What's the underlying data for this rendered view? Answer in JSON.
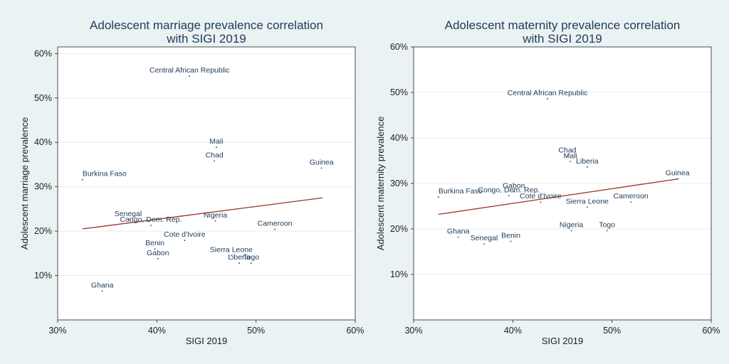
{
  "colors": {
    "background": "#eaf2f3",
    "plot_bg": "#ffffff",
    "marker": "#1f3b57",
    "fit_line": "#a0312f",
    "title": "#1f3b57"
  },
  "chart_data": [
    {
      "type": "scatter",
      "title_lines": [
        "Adolescent marriage prevalence correlation",
        "with SIGI 2019"
      ],
      "xlabel": "SIGI 2019",
      "ylabel": "Adolescent marriage prevalence",
      "xlim": [
        30,
        60
      ],
      "ylim": [
        0,
        61.5
      ],
      "xticks": [
        30,
        40,
        50,
        60
      ],
      "xtick_labels": [
        "30%",
        "40%",
        "50%",
        "60%"
      ],
      "yticks": [
        10,
        20,
        30,
        40,
        50,
        60
      ],
      "ytick_labels": [
        "10%",
        "20%",
        "30%",
        "40%",
        "50%",
        "60%"
      ],
      "grid": true,
      "fit_line": {
        "x": [
          32.5,
          56.7
        ],
        "y": [
          20.5,
          27.5
        ]
      },
      "points": [
        {
          "label": "Central African Republic",
          "x": 43.3,
          "y": 54.9
        },
        {
          "label": "Mali",
          "x": 46.0,
          "y": 38.9
        },
        {
          "label": "Chad",
          "x": 45.8,
          "y": 35.8
        },
        {
          "label": "Guinea",
          "x": 56.6,
          "y": 34.2
        },
        {
          "label": "Burkina Faso",
          "x": 32.5,
          "y": 31.6
        },
        {
          "label": "Senegal",
          "x": 37.1,
          "y": 22.6
        },
        {
          "label": "Congo, Dem. Rep.",
          "x": 39.4,
          "y": 21.3
        },
        {
          "label": "Nigeria",
          "x": 45.9,
          "y": 22.3
        },
        {
          "label": "Cameroon",
          "x": 51.9,
          "y": 20.4
        },
        {
          "label": "Cote d'Ivoire",
          "x": 42.8,
          "y": 17.9
        },
        {
          "label": "Benin",
          "x": 39.8,
          "y": 16.0
        },
        {
          "label": "Sierra Leone",
          "x": 47.5,
          "y": 14.5
        },
        {
          "label": "Gabon",
          "x": 40.1,
          "y": 13.8
        },
        {
          "label": "Liberia",
          "x": 48.3,
          "y": 12.8
        },
        {
          "label": "Togo",
          "x": 49.5,
          "y": 12.8
        },
        {
          "label": "Ghana",
          "x": 34.5,
          "y": 6.5
        }
      ]
    },
    {
      "type": "scatter",
      "title_lines": [
        "Adolescent maternity prevalence correlation",
        "with SIGI 2019"
      ],
      "xlabel": "SIGI 2019",
      "ylabel": "Adolescent maternity prevalence",
      "xlim": [
        30,
        60
      ],
      "ylim": [
        0,
        60
      ],
      "xticks": [
        30,
        40,
        50,
        60
      ],
      "xtick_labels": [
        "30%",
        "40%",
        "50%",
        "60%"
      ],
      "yticks": [
        10,
        20,
        30,
        40,
        50,
        60
      ],
      "ytick_labels": [
        "10%",
        "20%",
        "30%",
        "40%",
        "50%",
        "60%"
      ],
      "grid": true,
      "fit_line": {
        "x": [
          32.5,
          56.7
        ],
        "y": [
          23.2,
          31.0
        ]
      },
      "points": [
        {
          "label": "Central African Republic",
          "x": 43.5,
          "y": 48.6
        },
        {
          "label": "Chad",
          "x": 45.5,
          "y": 36.0
        },
        {
          "label": "Mali",
          "x": 45.8,
          "y": 34.8
        },
        {
          "label": "Liberia",
          "x": 47.5,
          "y": 33.6
        },
        {
          "label": "Guinea",
          "x": 56.6,
          "y": 31.0
        },
        {
          "label": "Gabon",
          "x": 40.1,
          "y": 28.2
        },
        {
          "label": "Burkina Faso",
          "x": 32.5,
          "y": 27.0
        },
        {
          "label": "Congo, Dem. Rep.",
          "x": 39.6,
          "y": 27.3
        },
        {
          "label": "Cameroon",
          "x": 51.9,
          "y": 25.9
        },
        {
          "label": "Cote d'Ivoire",
          "x": 42.8,
          "y": 25.9
        },
        {
          "label": "Sierra Leone",
          "x": 47.5,
          "y": 24.8
        },
        {
          "label": "Nigeria",
          "x": 45.9,
          "y": 19.6
        },
        {
          "label": "Togo",
          "x": 49.5,
          "y": 19.6
        },
        {
          "label": "Ghana",
          "x": 34.5,
          "y": 18.2
        },
        {
          "label": "Benin",
          "x": 39.8,
          "y": 17.3
        },
        {
          "label": "Senegal",
          "x": 37.1,
          "y": 16.7
        }
      ]
    }
  ]
}
